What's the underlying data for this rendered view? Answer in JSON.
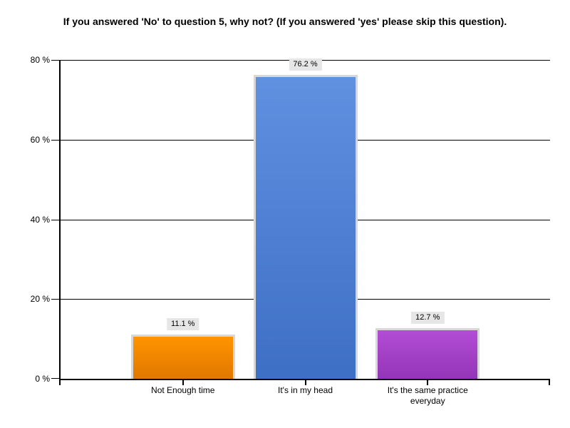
{
  "chart_data": {
    "type": "bar",
    "title": "If you answered 'No' to question 5, why not? (If you answered 'yes' please skip this question).",
    "categories": [
      "Not Enough time",
      "It's in my head",
      "It's the same practice everyday"
    ],
    "values": [
      11.1,
      76.2,
      12.7
    ],
    "value_labels": [
      "11.1 %",
      "76.2 %",
      "12.7 %"
    ],
    "yticks": [
      "0 %",
      "20 %",
      "40 %",
      "60 %",
      "80 %"
    ],
    "ylim": [
      0,
      80
    ],
    "grid": true,
    "legend": "none",
    "background": "#ffffff",
    "axis_color": "#000000",
    "bar_border_color": "#d8d8d8",
    "value_label_bg": "#e6e6e6",
    "bar_colors": [
      {
        "top": "#ff9400",
        "bottom": "#e17800"
      },
      {
        "top": "#6090e0",
        "bottom": "#3d6fc5"
      },
      {
        "top": "#b24dd6",
        "bottom": "#9435b7"
      }
    ]
  }
}
